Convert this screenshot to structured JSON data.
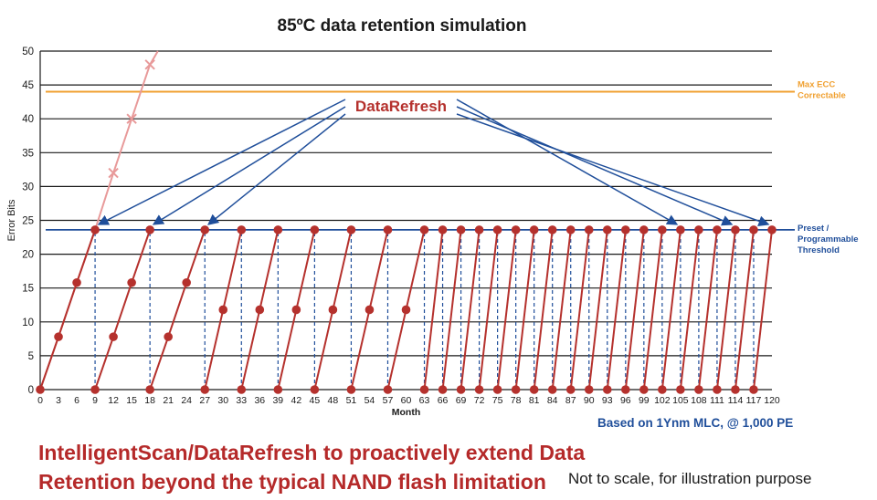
{
  "header": {
    "title": "85ºC data retention simulation"
  },
  "notes": {
    "basis": "Based on 1Ynm MLC, @ 1,000 PE",
    "headline_line1": "IntelligentScan/DataRefresh to proactively extend Data",
    "headline_line2": "Retention beyond the typical NAND flash limitation",
    "scale": "Not to scale, for illustration purpose"
  },
  "colors": {
    "refresh_red": "#b5312d",
    "no_refresh_pink": "#e89a9a",
    "threshold_blue": "#1f4e9a",
    "ecc_orange": "#f0a030",
    "grid": "#1a1a1a"
  },
  "chart_data": {
    "type": "line",
    "title": "85ºC data retention simulation",
    "xlabel": "Month",
    "ylabel": "Error Bits",
    "xlim": [
      0,
      120
    ],
    "ylim": [
      0,
      50
    ],
    "x_ticks": [
      "0",
      "3",
      "6",
      "9",
      "12",
      "15",
      "18",
      "21",
      "24",
      "27",
      "30",
      "33",
      "36",
      "39",
      "42",
      "45",
      "48",
      "51",
      "54",
      "57",
      "60",
      "63",
      "66",
      "69",
      "72",
      "75",
      "78",
      "81",
      "84",
      "87",
      "90",
      "93",
      "96",
      "99",
      "102",
      "105",
      "108",
      "111",
      "114",
      "117",
      "120"
    ],
    "y_ticks": [
      "0",
      "5",
      "10",
      "15",
      "20",
      "25",
      "30",
      "35",
      "40",
      "45",
      "50"
    ],
    "grid": "horizontal",
    "reference_lines": [
      {
        "label_line1": "Max ECC",
        "label_line2": "Correctable",
        "y": 44,
        "color": "#f0a030"
      },
      {
        "label_line1": "Preset /",
        "label_line2": "Programmable",
        "label_line3": "Threshold",
        "y": 23.6,
        "color": "#1f4e9a"
      }
    ],
    "annotation": {
      "label": "DataRefresh",
      "arrow_targets_x": [
        9,
        18,
        27,
        105,
        114,
        120
      ],
      "arrow_target_y": 23.6
    },
    "series": [
      {
        "no_refresh_points": [
          {
            "x": 0,
            "y": 0
          },
          {
            "x": 3,
            "y": 7.8
          },
          {
            "x": 6,
            "y": 15.8
          },
          {
            "x": 9,
            "y": 23.6
          },
          {
            "x": 12,
            "y": 32
          },
          {
            "x": 15,
            "y": 40
          },
          {
            "x": 18,
            "y": 48
          }
        ]
      },
      {
        "refresh_cycles": [
          {
            "start": 0,
            "end": 9,
            "points": [
              {
                "x": 0,
                "y": 0
              },
              {
                "x": 3,
                "y": 7.8
              },
              {
                "x": 6,
                "y": 15.8
              },
              {
                "x": 9,
                "y": 23.6
              }
            ]
          },
          {
            "start": 9,
            "end": 18,
            "points": [
              {
                "x": 9,
                "y": 0
              },
              {
                "x": 12,
                "y": 7.8
              },
              {
                "x": 15,
                "y": 15.8
              },
              {
                "x": 18,
                "y": 23.6
              }
            ]
          },
          {
            "start": 18,
            "end": 27,
            "points": [
              {
                "x": 18,
                "y": 0
              },
              {
                "x": 21,
                "y": 7.8
              },
              {
                "x": 24,
                "y": 15.8
              },
              {
                "x": 27,
                "y": 23.6
              }
            ]
          },
          {
            "start": 27,
            "end": 33,
            "points": [
              {
                "x": 27,
                "y": 0
              },
              {
                "x": 30,
                "y": 11.8
              },
              {
                "x": 33,
                "y": 23.6
              }
            ]
          },
          {
            "start": 33,
            "end": 39,
            "points": [
              {
                "x": 33,
                "y": 0
              },
              {
                "x": 36,
                "y": 11.8
              },
              {
                "x": 39,
                "y": 23.6
              }
            ]
          },
          {
            "start": 39,
            "end": 45,
            "points": [
              {
                "x": 39,
                "y": 0
              },
              {
                "x": 42,
                "y": 11.8
              },
              {
                "x": 45,
                "y": 23.6
              }
            ]
          },
          {
            "start": 45,
            "end": 51,
            "points": [
              {
                "x": 45,
                "y": 0
              },
              {
                "x": 48,
                "y": 11.8
              },
              {
                "x": 51,
                "y": 23.6
              }
            ]
          },
          {
            "start": 51,
            "end": 57,
            "points": [
              {
                "x": 51,
                "y": 0
              },
              {
                "x": 54,
                "y": 11.8
              },
              {
                "x": 57,
                "y": 23.6
              }
            ]
          },
          {
            "start": 57,
            "end": 63,
            "points": [
              {
                "x": 57,
                "y": 0
              },
              {
                "x": 60,
                "y": 11.8
              },
              {
                "x": 63,
                "y": 23.6
              }
            ]
          },
          {
            "start": 63,
            "end": 66,
            "points": [
              {
                "x": 63,
                "y": 0
              },
              {
                "x": 66,
                "y": 23.6
              }
            ]
          },
          {
            "start": 66,
            "end": 69,
            "points": [
              {
                "x": 66,
                "y": 0
              },
              {
                "x": 69,
                "y": 23.6
              }
            ]
          },
          {
            "start": 69,
            "end": 72,
            "points": [
              {
                "x": 69,
                "y": 0
              },
              {
                "x": 72,
                "y": 23.6
              }
            ]
          },
          {
            "start": 72,
            "end": 75,
            "points": [
              {
                "x": 72,
                "y": 0
              },
              {
                "x": 75,
                "y": 23.6
              }
            ]
          },
          {
            "start": 75,
            "end": 78,
            "points": [
              {
                "x": 75,
                "y": 0
              },
              {
                "x": 78,
                "y": 23.6
              }
            ]
          },
          {
            "start": 78,
            "end": 81,
            "points": [
              {
                "x": 78,
                "y": 0
              },
              {
                "x": 81,
                "y": 23.6
              }
            ]
          },
          {
            "start": 81,
            "end": 84,
            "points": [
              {
                "x": 81,
                "y": 0
              },
              {
                "x": 84,
                "y": 23.6
              }
            ]
          },
          {
            "start": 84,
            "end": 87,
            "points": [
              {
                "x": 84,
                "y": 0
              },
              {
                "x": 87,
                "y": 23.6
              }
            ]
          },
          {
            "start": 87,
            "end": 90,
            "points": [
              {
                "x": 87,
                "y": 0
              },
              {
                "x": 90,
                "y": 23.6
              }
            ]
          },
          {
            "start": 90,
            "end": 93,
            "points": [
              {
                "x": 90,
                "y": 0
              },
              {
                "x": 93,
                "y": 23.6
              }
            ]
          },
          {
            "start": 93,
            "end": 96,
            "points": [
              {
                "x": 93,
                "y": 0
              },
              {
                "x": 96,
                "y": 23.6
              }
            ]
          },
          {
            "start": 96,
            "end": 99,
            "points": [
              {
                "x": 96,
                "y": 0
              },
              {
                "x": 99,
                "y": 23.6
              }
            ]
          },
          {
            "start": 99,
            "end": 102,
            "points": [
              {
                "x": 99,
                "y": 0
              },
              {
                "x": 102,
                "y": 23.6
              }
            ]
          },
          {
            "start": 102,
            "end": 105,
            "points": [
              {
                "x": 102,
                "y": 0
              },
              {
                "x": 105,
                "y": 23.6
              }
            ]
          },
          {
            "start": 105,
            "end": 108,
            "points": [
              {
                "x": 105,
                "y": 0
              },
              {
                "x": 108,
                "y": 23.6
              }
            ]
          },
          {
            "start": 108,
            "end": 111,
            "points": [
              {
                "x": 108,
                "y": 0
              },
              {
                "x": 111,
                "y": 23.6
              }
            ]
          },
          {
            "start": 111,
            "end": 114,
            "points": [
              {
                "x": 111,
                "y": 0
              },
              {
                "x": 114,
                "y": 23.6
              }
            ]
          },
          {
            "start": 114,
            "end": 117,
            "points": [
              {
                "x": 114,
                "y": 0
              },
              {
                "x": 117,
                "y": 23.6
              }
            ]
          },
          {
            "start": 117,
            "end": 120,
            "points": [
              {
                "x": 117,
                "y": 0
              },
              {
                "x": 120,
                "y": 23.6
              }
            ]
          }
        ]
      }
    ]
  }
}
